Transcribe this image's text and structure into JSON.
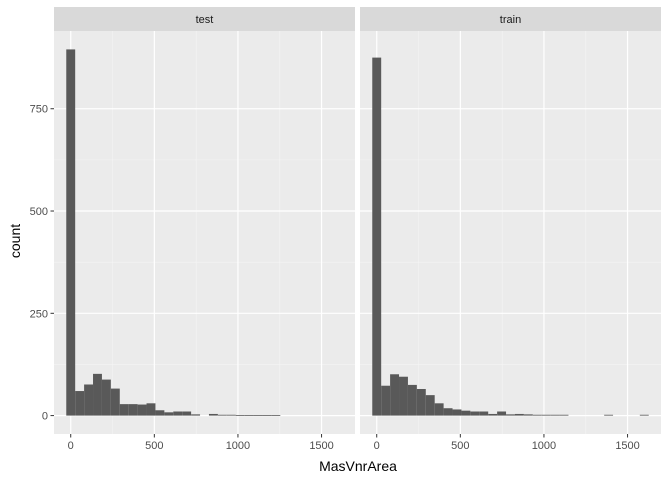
{
  "chart_data": {
    "type": "bar",
    "subtype": "faceted-histogram",
    "xlabel": "MasVnrArea",
    "ylabel": "count",
    "bin_width": 53.3,
    "xlim": [
      -100,
      1700
    ],
    "ylim": [
      -45,
      940
    ],
    "x_ticks": [
      0,
      500,
      1000,
      1500
    ],
    "y_ticks": [
      0,
      250,
      500,
      750
    ],
    "x_tick_labels": [
      "0",
      "500",
      "1000",
      "1500"
    ],
    "y_tick_labels": [
      "0",
      "250",
      "500",
      "750"
    ],
    "grid": true,
    "legend": "none",
    "colors": {
      "bar": "#595959",
      "panel": "#ebebeb",
      "strip": "#d9d9d9",
      "grid_major": "#ffffff",
      "grid_minor": "#f5f5f5"
    },
    "facets": [
      {
        "label": "test",
        "bins": [
          {
            "x": 0,
            "count": 895
          },
          {
            "x": 53.3,
            "count": 60
          },
          {
            "x": 106.7,
            "count": 76
          },
          {
            "x": 160,
            "count": 102
          },
          {
            "x": 213.3,
            "count": 88
          },
          {
            "x": 266.7,
            "count": 66
          },
          {
            "x": 320,
            "count": 28
          },
          {
            "x": 373.3,
            "count": 28
          },
          {
            "x": 426.7,
            "count": 27
          },
          {
            "x": 480,
            "count": 30
          },
          {
            "x": 533.3,
            "count": 13
          },
          {
            "x": 586.7,
            "count": 8
          },
          {
            "x": 640,
            "count": 10
          },
          {
            "x": 693.3,
            "count": 10
          },
          {
            "x": 746.7,
            "count": 3
          },
          {
            "x": 853.3,
            "count": 4
          },
          {
            "x": 906.7,
            "count": 2
          },
          {
            "x": 960,
            "count": 2
          },
          {
            "x": 1013.3,
            "count": 1
          },
          {
            "x": 1066.7,
            "count": 1
          },
          {
            "x": 1120,
            "count": 1
          },
          {
            "x": 1173.3,
            "count": 1
          },
          {
            "x": 1226.7,
            "count": 1
          }
        ]
      },
      {
        "label": "train",
        "bins": [
          {
            "x": 0,
            "count": 875
          },
          {
            "x": 53.3,
            "count": 73
          },
          {
            "x": 106.7,
            "count": 101
          },
          {
            "x": 160,
            "count": 95
          },
          {
            "x": 213.3,
            "count": 75
          },
          {
            "x": 266.7,
            "count": 65
          },
          {
            "x": 320,
            "count": 50
          },
          {
            "x": 373.3,
            "count": 30
          },
          {
            "x": 426.7,
            "count": 18
          },
          {
            "x": 480,
            "count": 15
          },
          {
            "x": 533.3,
            "count": 12
          },
          {
            "x": 586.7,
            "count": 10
          },
          {
            "x": 640,
            "count": 10
          },
          {
            "x": 693.3,
            "count": 4
          },
          {
            "x": 746.7,
            "count": 10
          },
          {
            "x": 800,
            "count": 3
          },
          {
            "x": 853.3,
            "count": 4
          },
          {
            "x": 906.7,
            "count": 3
          },
          {
            "x": 960,
            "count": 2
          },
          {
            "x": 1013.3,
            "count": 2
          },
          {
            "x": 1066.7,
            "count": 2
          },
          {
            "x": 1120,
            "count": 2
          },
          {
            "x": 1386.7,
            "count": 2
          },
          {
            "x": 1600,
            "count": 2
          }
        ]
      }
    ]
  }
}
